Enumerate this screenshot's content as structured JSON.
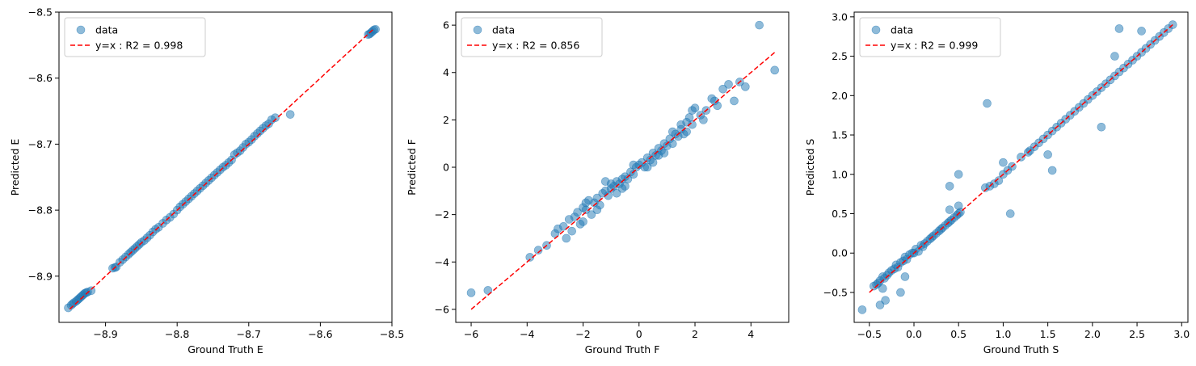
{
  "chart_data": [
    {
      "type": "scatter",
      "xlabel": "Ground Truth E",
      "ylabel": "Predicted E",
      "xlim": [
        -8.965,
        -8.5
      ],
      "ylim": [
        -8.97,
        -8.5
      ],
      "xticks": [
        -8.9,
        -8.8,
        -8.7,
        -8.6,
        -8.5
      ],
      "yticks": [
        -8.9,
        -8.8,
        -8.7,
        -8.6,
        -8.5
      ],
      "xtick_labels": [
        "−8.9",
        "−8.8",
        "−8.7",
        "−8.6",
        "−8.5"
      ],
      "ytick_labels": [
        "−8.9",
        "−8.8",
        "−8.7",
        "−8.6",
        "−8.5"
      ],
      "legend": {
        "position": "top-left",
        "entries": [
          "data",
          "y=x : R2 = 0.998"
        ]
      },
      "scatter_color": "#1f77b4",
      "line_color": "#ff0000",
      "fit_line": {
        "x": [
          -8.95,
          -8.525
        ],
        "y": [
          -8.95,
          -8.525
        ]
      },
      "series": [
        {
          "name": "data",
          "x": [
            -8.952,
            -8.948,
            -8.946,
            -8.944,
            -8.941,
            -8.939,
            -8.937,
            -8.935,
            -8.933,
            -8.931,
            -8.929,
            -8.927,
            -8.925,
            -8.92,
            -8.89,
            -8.887,
            -8.885,
            -8.88,
            -8.876,
            -8.872,
            -8.868,
            -8.865,
            -8.862,
            -8.859,
            -8.856,
            -8.853,
            -8.85,
            -8.846,
            -8.842,
            -8.838,
            -8.834,
            -8.83,
            -8.826,
            -8.82,
            -8.815,
            -8.81,
            -8.805,
            -8.8,
            -8.796,
            -8.792,
            -8.788,
            -8.784,
            -8.78,
            -8.776,
            -8.772,
            -8.768,
            -8.764,
            -8.76,
            -8.756,
            -8.752,
            -8.748,
            -8.744,
            -8.74,
            -8.736,
            -8.732,
            -8.728,
            -8.724,
            -8.72,
            -8.716,
            -8.712,
            -8.708,
            -8.704,
            -8.7,
            -8.696,
            -8.692,
            -8.688,
            -8.684,
            -8.68,
            -8.676,
            -8.672,
            -8.668,
            -8.663,
            -8.642,
            -8.533,
            -8.531,
            -8.529,
            -8.527,
            -8.525,
            -8.523
          ],
          "y": [
            -8.948,
            -8.944,
            -8.942,
            -8.94,
            -8.938,
            -8.936,
            -8.934,
            -8.932,
            -8.93,
            -8.928,
            -8.926,
            -8.925,
            -8.924,
            -8.922,
            -8.888,
            -8.887,
            -8.886,
            -8.879,
            -8.875,
            -8.871,
            -8.867,
            -8.864,
            -8.861,
            -8.858,
            -8.855,
            -8.852,
            -8.849,
            -8.846,
            -8.842,
            -8.838,
            -8.833,
            -8.829,
            -8.826,
            -8.82,
            -8.815,
            -8.811,
            -8.806,
            -8.8,
            -8.795,
            -8.791,
            -8.787,
            -8.783,
            -8.779,
            -8.775,
            -8.771,
            -8.767,
            -8.763,
            -8.759,
            -8.755,
            -8.751,
            -8.747,
            -8.743,
            -8.739,
            -8.735,
            -8.732,
            -8.728,
            -8.724,
            -8.716,
            -8.713,
            -8.71,
            -8.705,
            -8.7,
            -8.697,
            -8.693,
            -8.688,
            -8.684,
            -8.68,
            -8.676,
            -8.672,
            -8.669,
            -8.663,
            -8.66,
            -8.655,
            -8.534,
            -8.533,
            -8.531,
            -8.529,
            -8.527,
            -8.526
          ]
        }
      ]
    },
    {
      "type": "scatter",
      "xlabel": "Ground Truth F",
      "ylabel": "Predicted F",
      "xlim": [
        -6.55,
        5.35
      ],
      "ylim": [
        -6.55,
        6.55
      ],
      "xticks": [
        -6,
        -4,
        -2,
        0,
        2,
        4
      ],
      "yticks": [
        -6,
        -4,
        -2,
        0,
        2,
        4,
        6
      ],
      "xtick_labels": [
        "−6",
        "−4",
        "−2",
        "0",
        "2",
        "4"
      ],
      "ytick_labels": [
        "−6",
        "−4",
        "−2",
        "0",
        "2",
        "4",
        "6"
      ],
      "legend": {
        "position": "top-left",
        "entries": [
          "data",
          "y=x : R2 = 0.856"
        ]
      },
      "scatter_color": "#1f77b4",
      "line_color": "#ff0000",
      "fit_line": {
        "x": [
          -6.0,
          4.85
        ],
        "y": [
          -6.0,
          4.85
        ]
      },
      "series": [
        {
          "name": "data",
          "x": [
            -6.0,
            -5.4,
            -3.9,
            -3.6,
            -3.3,
            -3.0,
            -2.9,
            -2.7,
            -2.6,
            -2.5,
            -2.4,
            -2.3,
            -2.2,
            -2.1,
            -2.0,
            -1.9,
            -1.8,
            -1.7,
            -1.6,
            -1.5,
            -1.4,
            -1.3,
            -1.2,
            -1.1,
            -1.0,
            -0.9,
            -0.8,
            -0.7,
            -0.6,
            -0.5,
            -0.4,
            -0.3,
            -0.2,
            -0.1,
            0.0,
            0.1,
            0.2,
            0.3,
            0.4,
            0.5,
            0.6,
            0.7,
            0.8,
            0.9,
            1.0,
            1.1,
            1.2,
            1.3,
            1.4,
            1.5,
            1.6,
            1.7,
            1.8,
            1.9,
            2.0,
            2.2,
            2.4,
            2.6,
            2.8,
            3.0,
            3.2,
            3.4,
            3.6,
            3.8,
            4.3,
            4.85,
            -1.2,
            -0.8,
            -1.5,
            -0.5,
            0.3,
            0.7,
            1.5,
            1.9,
            -2.0,
            -1.0,
            0.5,
            1.2,
            2.3,
            -0.2,
            0.9,
            -1.9,
            -0.6,
            1.7,
            2.7
          ],
          "y": [
            -5.3,
            -5.2,
            -3.8,
            -3.5,
            -3.3,
            -2.8,
            -2.6,
            -2.5,
            -3.0,
            -2.2,
            -2.7,
            -2.1,
            -1.9,
            -2.4,
            -1.7,
            -1.8,
            -1.4,
            -2.0,
            -1.5,
            -1.3,
            -1.6,
            -1.1,
            -0.6,
            -1.2,
            -0.9,
            -0.8,
            -0.6,
            -0.7,
            -0.5,
            -0.4,
            -0.5,
            -0.2,
            -0.3,
            0.0,
            0.1,
            0.2,
            0.0,
            0.4,
            0.3,
            0.6,
            0.5,
            0.8,
            0.7,
            1.0,
            0.9,
            1.2,
            1.0,
            1.4,
            1.3,
            1.6,
            1.4,
            1.9,
            2.1,
            1.8,
            2.5,
            2.2,
            2.4,
            2.9,
            2.6,
            3.3,
            3.5,
            2.8,
            3.6,
            3.4,
            6.0,
            4.1,
            -1.0,
            -1.1,
            -1.8,
            -0.8,
            0.0,
            0.5,
            1.8,
            2.4,
            -2.3,
            -0.7,
            0.2,
            1.5,
            2.0,
            0.1,
            0.6,
            -1.5,
            -0.9,
            1.5,
            2.8
          ]
        }
      ]
    },
    {
      "type": "scatter",
      "xlabel": "Ground Truth S",
      "ylabel": "Predicted S",
      "xlim": [
        -0.67,
        3.07
      ],
      "ylim": [
        -0.88,
        3.06
      ],
      "xticks": [
        -0.5,
        0.0,
        0.5,
        1.0,
        1.5,
        2.0,
        2.5,
        3.0
      ],
      "yticks": [
        -0.5,
        0.0,
        0.5,
        1.0,
        1.5,
        2.0,
        2.5,
        3.0
      ],
      "xtick_labels": [
        "−0.5",
        "0.0",
        "0.5",
        "1.0",
        "1.5",
        "2.0",
        "2.5",
        "3.0"
      ],
      "ytick_labels": [
        "−0.5",
        "0.0",
        "0.5",
        "1.0",
        "1.5",
        "2.0",
        "2.5",
        "3.0"
      ],
      "legend": {
        "position": "top-left",
        "entries": [
          "data",
          "y=x : R2 = 0.999"
        ]
      },
      "scatter_color": "#1f77b4",
      "line_color": "#ff0000",
      "fit_line": {
        "x": [
          -0.5,
          2.9
        ],
        "y": [
          -0.5,
          2.9
        ]
      },
      "series": [
        {
          "name": "data",
          "x": [
            -0.58,
            -0.45,
            -0.42,
            -0.4,
            -0.38,
            -0.35,
            -0.33,
            -0.3,
            -0.28,
            -0.25,
            -0.22,
            -0.2,
            -0.18,
            -0.15,
            -0.12,
            -0.1,
            -0.08,
            -0.05,
            -0.02,
            0.0,
            0.02,
            0.05,
            0.08,
            0.1,
            0.12,
            0.15,
            0.18,
            0.2,
            0.22,
            0.25,
            0.28,
            0.3,
            0.32,
            0.35,
            0.38,
            0.4,
            0.42,
            0.45,
            0.48,
            0.5,
            0.52,
            0.8,
            0.82,
            0.85,
            0.9,
            0.95,
            1.0,
            1.05,
            1.08,
            1.1,
            1.2,
            1.28,
            1.3,
            1.35,
            1.4,
            1.45,
            1.5,
            1.55,
            1.6,
            1.65,
            1.7,
            1.75,
            1.8,
            1.85,
            1.9,
            1.95,
            2.0,
            2.05,
            2.1,
            2.15,
            2.2,
            2.25,
            2.3,
            2.35,
            2.4,
            2.45,
            2.5,
            2.55,
            2.6,
            2.65,
            2.7,
            2.75,
            2.8,
            2.85,
            2.9,
            -0.35,
            -0.15,
            -0.1,
            0.4,
            0.5,
            1.0,
            1.5,
            1.55,
            2.1,
            2.25,
            2.3,
            2.55,
            0.5,
            0.4,
            -0.32,
            -0.38
          ],
          "y": [
            -0.72,
            -0.42,
            -0.4,
            -0.38,
            -0.35,
            -0.3,
            -0.32,
            -0.28,
            -0.25,
            -0.22,
            -0.2,
            -0.15,
            -0.18,
            -0.12,
            -0.1,
            -0.05,
            -0.08,
            -0.02,
            0.0,
            0.0,
            0.05,
            0.02,
            0.1,
            0.08,
            0.12,
            0.15,
            0.18,
            0.2,
            0.22,
            0.25,
            0.28,
            0.3,
            0.32,
            0.35,
            0.38,
            0.4,
            0.42,
            0.45,
            0.48,
            0.5,
            0.52,
            0.83,
            1.9,
            0.85,
            0.88,
            0.92,
            1.0,
            1.05,
            0.5,
            1.1,
            1.22,
            1.28,
            1.3,
            1.35,
            1.4,
            1.45,
            1.5,
            1.55,
            1.6,
            1.65,
            1.7,
            1.75,
            1.8,
            1.85,
            1.9,
            1.95,
            2.0,
            2.05,
            2.1,
            2.15,
            2.2,
            2.25,
            2.3,
            2.35,
            2.4,
            2.45,
            2.5,
            2.55,
            2.6,
            2.65,
            2.7,
            2.75,
            2.8,
            2.85,
            2.9,
            -0.45,
            -0.5,
            -0.3,
            0.85,
            1.0,
            1.15,
            1.25,
            1.05,
            1.6,
            2.5,
            2.85,
            2.82,
            0.6,
            0.55,
            -0.6,
            -0.66
          ]
        }
      ]
    }
  ]
}
